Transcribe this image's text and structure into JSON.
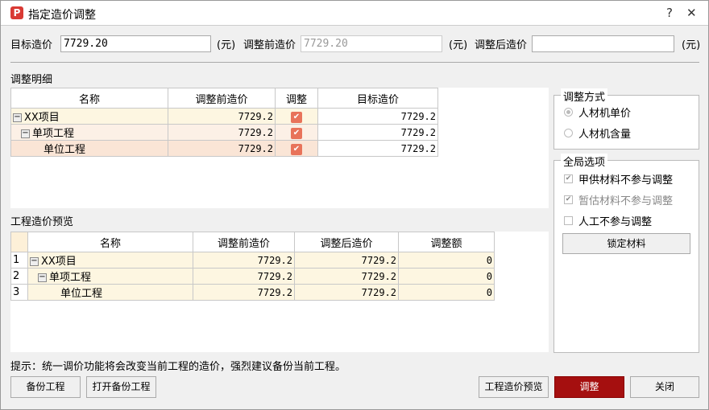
{
  "window": {
    "title": "指定造价调整",
    "help": "?",
    "close": "✕"
  },
  "fields": {
    "target_label": "目标造价",
    "target_value": "7729.20",
    "unit1": "(元)",
    "before_label": "调整前造价",
    "before_value": "7729.20",
    "unit2": "(元)",
    "after_label": "调整后造价",
    "after_value": "",
    "unit3": "(元)"
  },
  "detail": {
    "title": "调整明细",
    "columns": [
      "名称",
      "调整前造价",
      "调整",
      "目标造价"
    ],
    "rows": [
      {
        "name": "XX项目",
        "before": "7729.2",
        "adjust": true,
        "target": "7729.2"
      },
      {
        "name": "单项工程",
        "before": "7729.2",
        "adjust": true,
        "target": "7729.2"
      },
      {
        "name": "单位工程",
        "before": "7729.2",
        "adjust": true,
        "target": "7729.2"
      }
    ]
  },
  "preview": {
    "title": "工程造价预览",
    "columns": [
      "名称",
      "调整前造价",
      "调整后造价",
      "调整额"
    ],
    "rows": [
      {
        "no": "1",
        "name": "XX项目",
        "before": "7729.2",
        "after": "7729.2",
        "diff": "0"
      },
      {
        "no": "2",
        "name": "单项工程",
        "before": "7729.2",
        "after": "7729.2",
        "diff": "0"
      },
      {
        "no": "3",
        "name": "单位工程",
        "before": "7729.2",
        "after": "7729.2",
        "diff": "0"
      }
    ]
  },
  "method": {
    "title": "调整方式",
    "options": [
      {
        "label": "人材机单价",
        "selected": true
      },
      {
        "label": "人材机含量",
        "selected": false
      }
    ]
  },
  "global": {
    "title": "全局选项",
    "options": [
      {
        "label": "甲供材料不参与调整",
        "checked": true,
        "disabled": false
      },
      {
        "label": "暂估材料不参与调整",
        "checked": true,
        "disabled": true
      },
      {
        "label": "人工不参与调整",
        "checked": false,
        "disabled": false
      }
    ],
    "lock_button": "锁定材料"
  },
  "hint": "提示：统一调价功能将会改变当前工程的造价，强烈建议备份当前工程。",
  "buttons": {
    "backup": "备份工程",
    "open_backup": "打开备份工程",
    "preview": "工程造价预览",
    "adjust": "调整",
    "close": "关闭"
  },
  "colors": {
    "accent": "#a50f0f",
    "checkbox": "#e8735a"
  }
}
